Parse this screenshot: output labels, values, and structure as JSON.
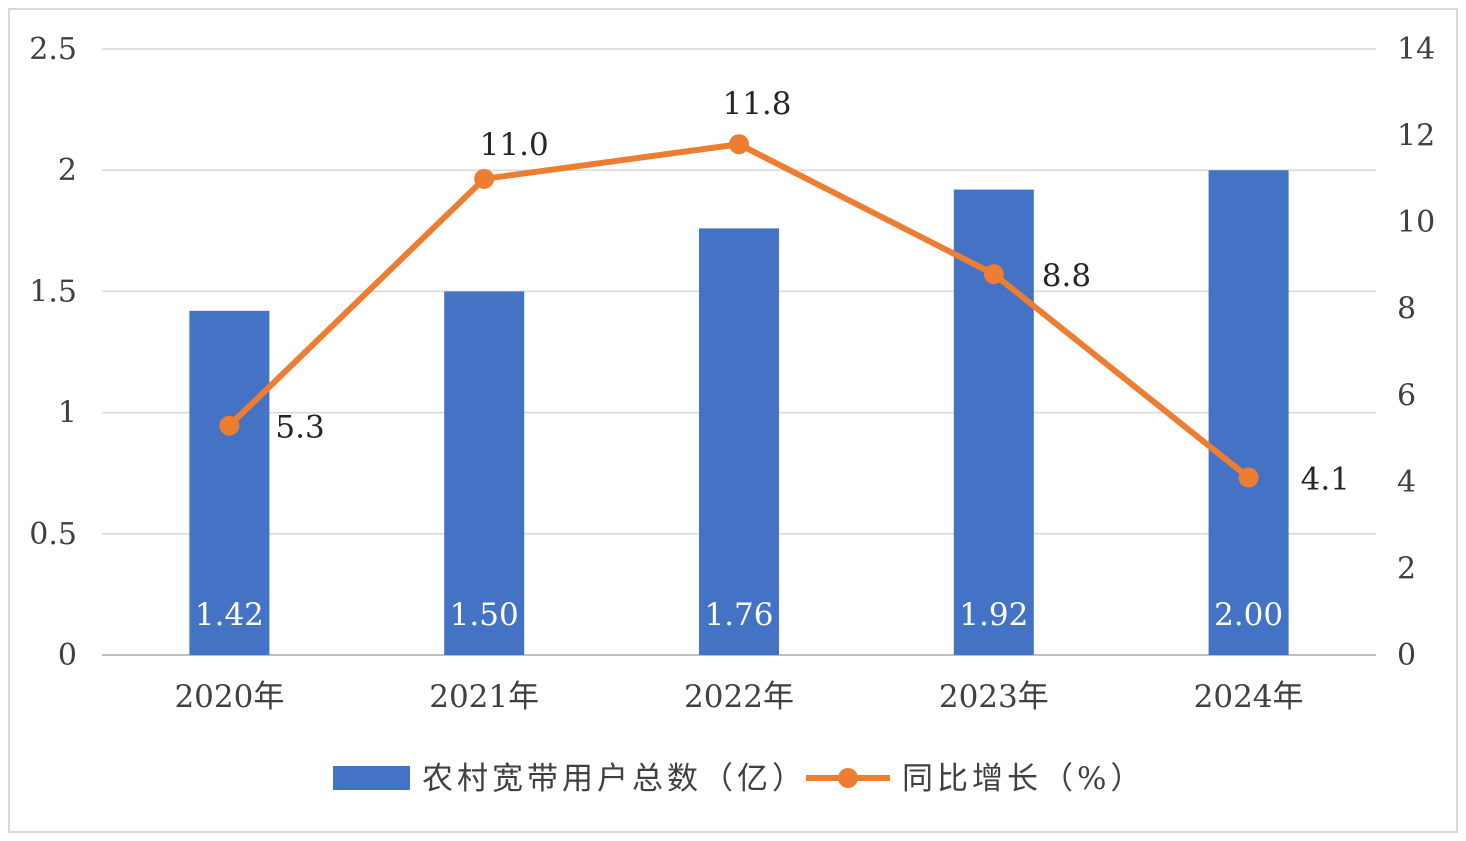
{
  "chart_data": {
    "type": "bar",
    "categories": [
      "2020年",
      "2021年",
      "2022年",
      "2023年",
      "2024年"
    ],
    "series": [
      {
        "name": "农村宽带用户总数（亿）",
        "type": "bar",
        "axis": "left",
        "color": "#4472C4",
        "values": [
          1.42,
          1.5,
          1.76,
          1.92,
          2.0
        ],
        "labels": [
          "1.42",
          "1.50",
          "1.76",
          "1.92",
          "2.00"
        ]
      },
      {
        "name": "同比增长（%）",
        "type": "line",
        "axis": "right",
        "color": "#ED7D31",
        "values": [
          5.3,
          11.0,
          11.8,
          8.8,
          4.1
        ],
        "labels": [
          "5.3",
          "11.0",
          "11.8",
          "8.8",
          "4.1"
        ]
      }
    ],
    "y_left": {
      "range": [
        0,
        2.5
      ],
      "ticks": [
        "0",
        "0.5",
        "1",
        "1.5",
        "2",
        "2.5"
      ]
    },
    "y_right": {
      "range": [
        0,
        14
      ],
      "ticks": [
        "0",
        "2",
        "4",
        "6",
        "8",
        "10",
        "12",
        "14"
      ]
    },
    "grid": true,
    "legend": "bottom"
  }
}
